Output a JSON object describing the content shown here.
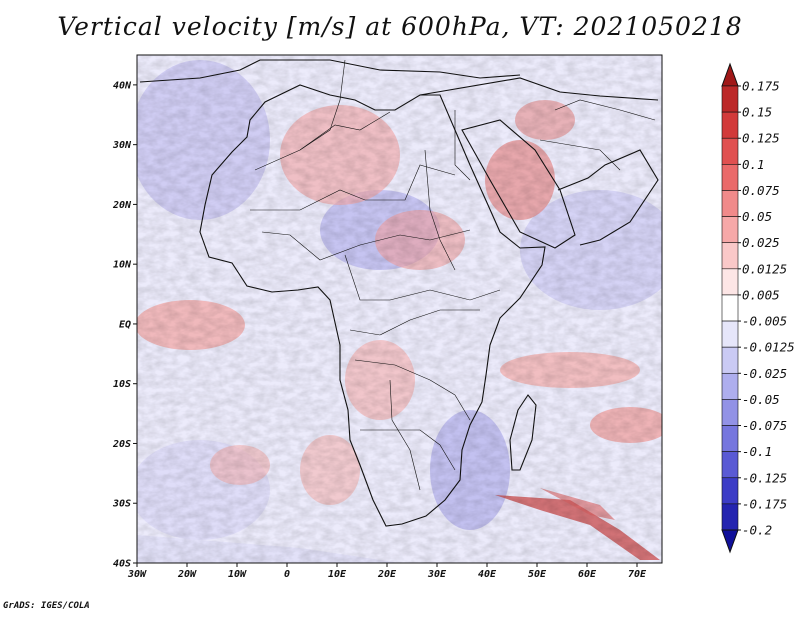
{
  "title": "Vertical velocity [m/s] at 600hPa, VT: 2021050218",
  "credit": "GrADS: IGES/COLA",
  "map": {
    "lon_range": [
      -30,
      75
    ],
    "lat_range": [
      -40,
      45
    ],
    "lon_labels": [
      "30W",
      "20W",
      "10W",
      "0",
      "10E",
      "20E",
      "30E",
      "40E",
      "50E",
      "60E",
      "70E"
    ],
    "lat_labels": [
      "40N",
      "30N",
      "20N",
      "10N",
      "EQ",
      "10S",
      "20S",
      "30S",
      "40S"
    ]
  },
  "colorbar": {
    "labels": [
      "0.175",
      "0.15",
      "0.125",
      "0.1",
      "0.075",
      "0.05",
      "0.025",
      "0.0125",
      "0.005",
      "-0.005",
      "-0.0125",
      "-0.025",
      "-0.05",
      "-0.075",
      "-0.1",
      "-0.125",
      "-0.175",
      "-0.2"
    ],
    "colors": [
      "#a01818",
      "#bc2828",
      "#d23a3a",
      "#e05050",
      "#ea6a6a",
      "#f08a8a",
      "#f6a8a8",
      "#fac8c8",
      "#fde6e6",
      "#ffffff",
      "#e6e6fa",
      "#cacaf4",
      "#aeaeee",
      "#9292e6",
      "#7676de",
      "#5a5ad4",
      "#3c3cc6",
      "#2424b0",
      "#10109a"
    ]
  }
}
